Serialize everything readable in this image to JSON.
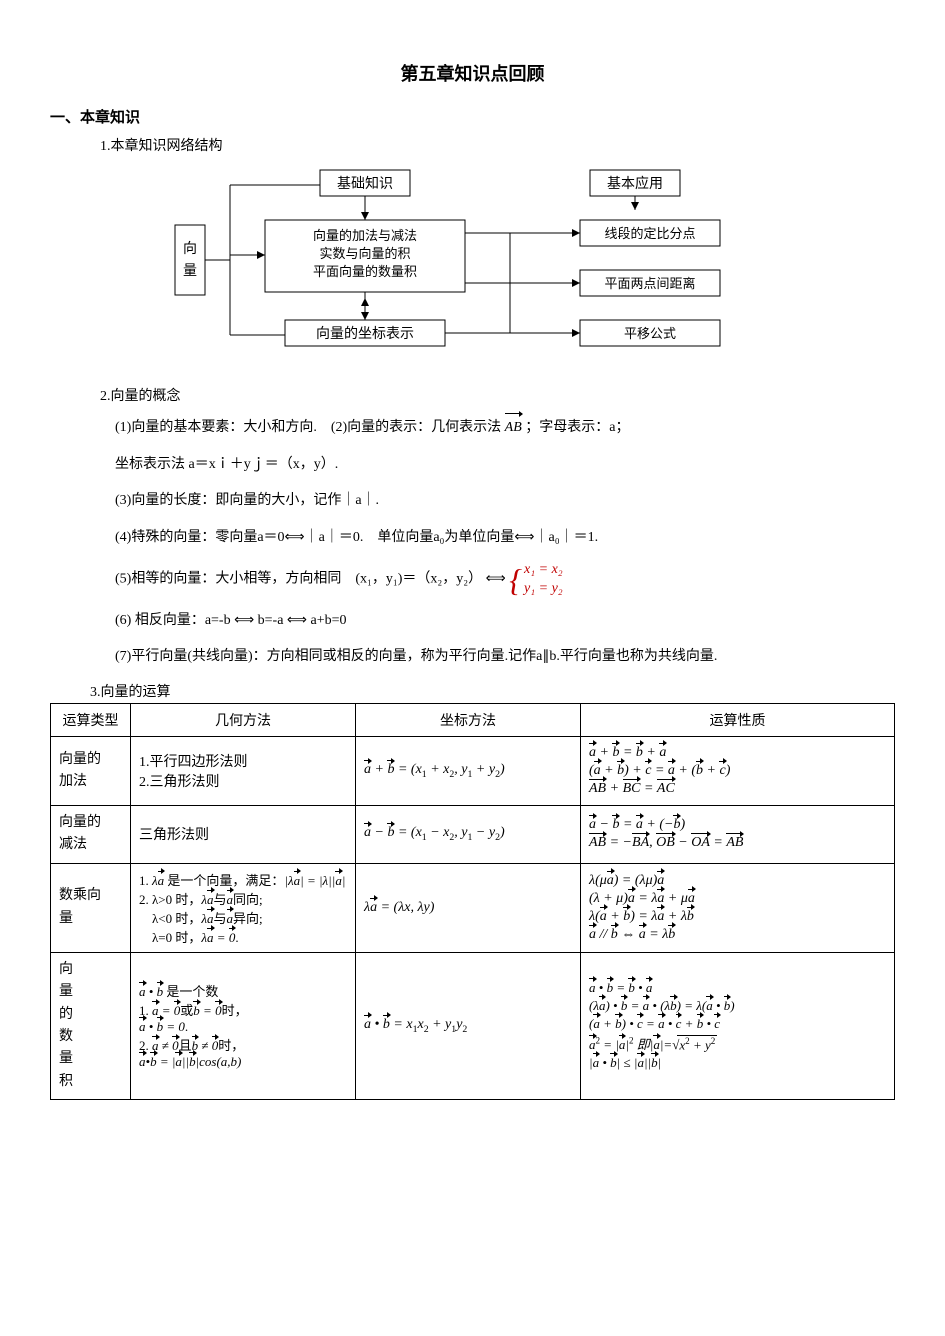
{
  "title": "第五章知识点回顾",
  "section1_heading": "一、本章知识",
  "sub1": "1.本章知识网络结构",
  "diagram": {
    "root": "向量",
    "col1_top": "基础知识",
    "col1_mid_lines": [
      "向量的加法与减法",
      "实数与向量的积",
      "平面向量的数量积"
    ],
    "col1_bot": "向量的坐标表示",
    "col2_top": "基本应用",
    "col2_items": [
      "线段的定比分点",
      "平面两点间距离",
      "平移公式"
    ],
    "box_border": "#000000",
    "box_fill": "#ffffff",
    "line_color": "#000000"
  },
  "sub2": "2.向量的概念",
  "concept": {
    "p1_a": "(1)向量的基本要素：大小和方向.　(2)向量的表示：几何表示法 ",
    "p1_b": "；字母表示：a；",
    "p2": "坐标表示法 a＝xｉ＋yｊ＝（x，y）.",
    "p3": "(3)向量的长度：即向量的大小，记作｜a｜.",
    "p4": "(4)特殊的向量：零向量a＝0⟺｜a｜＝0.　单位向量a₀为单位向量⟺｜a₀｜＝1.",
    "p5_a": "(5)相等的向量：大小相等，方向相同　(x₁，y₁)＝（x₂，y₂）",
    "p5_eq1": "x₁ = x₂",
    "p5_eq2": "y₁ = y₂",
    "p6": "(6) 相反向量：a=-b ⟺ b=-a ⟺ a+b=0",
    "p7": "(7)平行向量(共线向量)：方向相同或相反的向量，称为平行向量.记作a∥b.平行向量也称为共线向量."
  },
  "sub3": "3.向量的运算",
  "table": {
    "headers": [
      "运算类型",
      "几何方法",
      "坐标方法",
      "运算性质"
    ],
    "col_widths": [
      "80px",
      "220px",
      "220px",
      "auto"
    ],
    "rows": [
      {
        "type": "向量的加法",
        "geom": "1.平行四边形法则\n2.三角形法则",
        "coord_html": "<span class='math'><span class='vec-arrow'>a</span> + <span class='vec-arrow'>b</span> = (x<sub>1</sub> + x<sub>2</sub>, y<sub>1</sub> + y<sub>2</sub>)</span>",
        "props_html": "<div class='formula-stack math'><div><span class='vec-arrow'>a</span> + <span class='vec-arrow'>b</span> = <span class='vec-arrow'>b</span> + <span class='vec-arrow'>a</span></div><div>(<span class='vec-arrow'>a</span> + <span class='vec-arrow'>b</span>) + <span class='vec-arrow'>c</span> = <span class='vec-arrow'>a</span> + (<span class='vec-arrow'>b</span> + <span class='vec-arrow'>c</span>)</div><div><span class='vec-arrow'>AB</span> + <span class='vec-arrow'>BC</span> = <span class='vec-arrow'>AC</span></div></div>"
      },
      {
        "type": "向量的减法",
        "geom": "三角形法则",
        "coord_html": "<span class='math'><span class='vec-arrow'>a</span> − <span class='vec-arrow'>b</span> = (x<sub>1</sub> − x<sub>2</sub>, y<sub>1</sub> − y<sub>2</sub>)</span>",
        "props_html": "<div class='formula-stack math'><div><span class='vec-arrow'>a</span> − <span class='vec-arrow'>b</span> = <span class='vec-arrow'>a</span> + (−<span class='vec-arrow'>b</span>)</div><div><span class='vec-arrow'>AB</span> = −<span class='vec-arrow'>BA</span>, <span class='vec-arrow'>OB</span> − <span class='vec-arrow'>OA</span> = <span class='vec-arrow'>AB</span></div></div>"
      },
      {
        "type": "数乘向量",
        "geom_html": "<div style='font-size:13px;'>1. <span class='math'>λ<span class='vec-arrow'>a</span></span> 是一个向量，满足：<span class='math'>|λ<span class='vec-arrow'>a</span>| = |λ||<span class='vec-arrow'>a</span>|</span><br>2. λ&gt;0 时，<span class='math'>λ<span class='vec-arrow'>a</span></span>与<span class='math'><span class='vec-arrow'>a</span></span>同向;<br>　λ&lt;0 时，<span class='math'>λ<span class='vec-arrow'>a</span></span>与<span class='math'><span class='vec-arrow'>a</span></span>异向;<br>　λ=0 时，<span class='math'>λ<span class='vec-arrow'>a</span> = <span class='vec-arrow'>0</span></span>.</div>",
        "coord_html": "<span class='math'>λ<span class='vec-arrow'>a</span> = (λx, λy)</span>",
        "props_html": "<div class='formula-stack math'><div>λ(μ<span class='vec-arrow'>a</span>) = (λμ)<span class='vec-arrow'>a</span></div><div>(λ + μ)<span class='vec-arrow'>a</span> = λ<span class='vec-arrow'>a</span> + μ<span class='vec-arrow'>a</span></div><div>λ(<span class='vec-arrow'>a</span> + <span class='vec-arrow'>b</span>) = λ<span class='vec-arrow'>a</span> + λ<span class='vec-arrow'>b</span></div><div><span class='vec-arrow'>a</span> // <span class='vec-arrow'>b</span> ⇔ <span class='vec-arrow'>a</span> = λ<span class='vec-arrow'>b</span></div></div>"
      },
      {
        "type": "向量的数量积",
        "geom_html": "<div style='font-size:13px;'><span class='math'><span class='vec-arrow'>a</span> • <span class='vec-arrow'>b</span></span> 是一个数<br>1. <span class='math'><span class='vec-arrow'>a</span> = <span class='vec-arrow'>0</span></span>或<span class='math'><span class='vec-arrow'>b</span> = <span class='vec-arrow'>0</span></span>时，<br><span class='math'><span class='vec-arrow'>a</span> • <span class='vec-arrow'>b</span> = 0</span>.<br>2. <span class='math'><span class='vec-arrow'>a</span> ≠ <span class='vec-arrow'>0</span></span>且<span class='math'><span class='vec-arrow'>b</span> ≠ <span class='vec-arrow'>0</span></span>时，<br><span class='math'><span class='vec-arrow'>a</span>•<span class='vec-arrow'>b</span> = |<span class='vec-arrow'>a</span>||<span class='vec-arrow'>b</span>|cos(a,b)</span></div>",
        "coord_html": "<span class='math'><span class='vec-arrow'>a</span> • <span class='vec-arrow'>b</span> = x<sub>1</sub>x<sub>2</sub> + y<sub>1</sub>y<sub>2</sub></span>",
        "props_html": "<div class='formula-stack math' style='font-size:13px;'><div><span class='vec-arrow'>a</span> • <span class='vec-arrow'>b</span> = <span class='vec-arrow'>b</span> • <span class='vec-arrow'>a</span></div><div>(λ<span class='vec-arrow'>a</span>) • <span class='vec-arrow'>b</span> = <span class='vec-arrow'>a</span> • (λ<span class='vec-arrow'>b</span>) = λ(<span class='vec-arrow'>a</span> • <span class='vec-arrow'>b</span>)</div><div>(<span class='vec-arrow'>a</span> + <span class='vec-arrow'>b</span>) • <span class='vec-arrow'>c</span> = <span class='vec-arrow'>a</span> • <span class='vec-arrow'>c</span> + <span class='vec-arrow'>b</span> • <span class='vec-arrow'>c</span></div><div><span class='vec-arrow'>a</span><sup>2</sup> = |<span class='vec-arrow'>a</span>|<sup>2</sup> 即|<span class='vec-arrow'>a</span>|=<span class='radic'>√</span><span class='sqrt'>x<sup>2</sup> + y<sup>2</sup></span></div><div>|<span class='vec-arrow'>a</span> • <span class='vec-arrow'>b</span>| ≤ |<span class='vec-arrow'>a</span>||<span class='vec-arrow'>b</span>|</div></div>"
      }
    ]
  }
}
